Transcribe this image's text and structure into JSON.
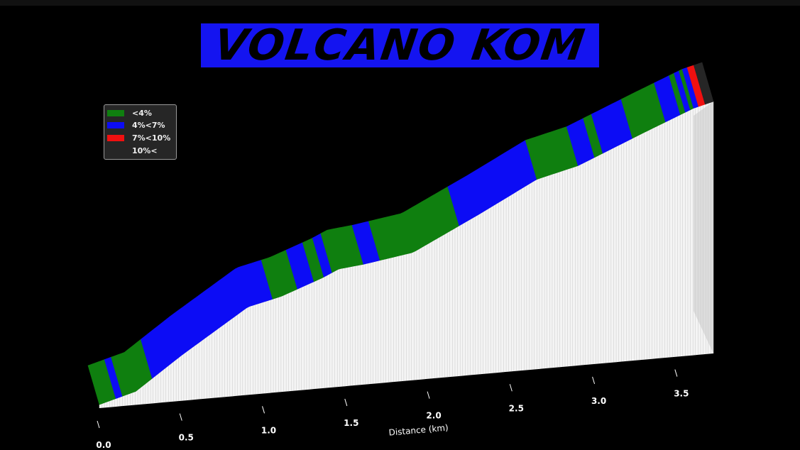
{
  "title": "VOLCANO KOM",
  "colors": {
    "title_background": "#1414f0",
    "background": "#000000",
    "low": "#0f7f0f",
    "medium": "#0c0cf5",
    "steep": "#f01010",
    "very_steep": "#262626"
  },
  "legend": [
    {
      "label": "<4%",
      "color": "#0f7f0f"
    },
    {
      "label": "4%<7%",
      "color": "#0c0cf5"
    },
    {
      "label": "7%<10%",
      "color": "#f01010"
    },
    {
      "label": "10%<",
      "color": "#262626"
    }
  ],
  "chart_data": {
    "type": "area",
    "style": "3d-ribbon",
    "xlabel": "Distance (km)",
    "ylabel": "",
    "xlim": [
      0.0,
      3.72
    ],
    "x_ticks": [
      "0.0",
      "0.5",
      "1.0",
      "1.5",
      "2.0",
      "2.5",
      "3.0",
      "3.5"
    ],
    "legend_position": "upper-left",
    "grid": false,
    "profile": {
      "x_km": [
        0.0,
        0.22,
        0.5,
        0.9,
        1.1,
        1.35,
        1.45,
        1.6,
        1.9,
        2.3,
        2.65,
        2.9,
        3.3,
        3.45,
        3.6,
        3.72
      ],
      "level": [
        0.0,
        0.04,
        0.17,
        0.34,
        0.37,
        0.43,
        0.46,
        0.47,
        0.5,
        0.63,
        0.75,
        0.79,
        0.9,
        0.94,
        0.98,
        1.0
      ]
    },
    "gradient_segments": [
      {
        "start_km": 0.0,
        "end_km": 0.1,
        "class": "<4%"
      },
      {
        "start_km": 0.1,
        "end_km": 0.14,
        "class": "4%<7%"
      },
      {
        "start_km": 0.14,
        "end_km": 0.32,
        "class": "<4%"
      },
      {
        "start_km": 0.32,
        "end_km": 1.05,
        "class": "4%<7%"
      },
      {
        "start_km": 1.05,
        "end_km": 1.2,
        "class": "<4%"
      },
      {
        "start_km": 1.2,
        "end_km": 1.3,
        "class": "4%<7%"
      },
      {
        "start_km": 1.3,
        "end_km": 1.36,
        "class": "<4%"
      },
      {
        "start_km": 1.36,
        "end_km": 1.41,
        "class": "4%<7%"
      },
      {
        "start_km": 1.41,
        "end_km": 1.6,
        "class": "<4%"
      },
      {
        "start_km": 1.6,
        "end_km": 1.7,
        "class": "4%<7%"
      },
      {
        "start_km": 1.7,
        "end_km": 2.18,
        "class": "<4%"
      },
      {
        "start_km": 2.18,
        "end_km": 2.65,
        "class": "4%<7%"
      },
      {
        "start_km": 2.65,
        "end_km": 2.9,
        "class": "<4%"
      },
      {
        "start_km": 2.9,
        "end_km": 3.0,
        "class": "4%<7%"
      },
      {
        "start_km": 3.0,
        "end_km": 3.05,
        "class": "<4%"
      },
      {
        "start_km": 3.05,
        "end_km": 3.23,
        "class": "4%<7%"
      },
      {
        "start_km": 3.23,
        "end_km": 3.43,
        "class": "<4%"
      },
      {
        "start_km": 3.43,
        "end_km": 3.52,
        "class": "4%<7%"
      },
      {
        "start_km": 3.52,
        "end_km": 3.55,
        "class": "<4%"
      },
      {
        "start_km": 3.55,
        "end_km": 3.58,
        "class": "4%<7%"
      },
      {
        "start_km": 3.58,
        "end_km": 3.6,
        "class": "<4%"
      },
      {
        "start_km": 3.6,
        "end_km": 3.63,
        "class": "4%<7%"
      },
      {
        "start_km": 3.63,
        "end_km": 3.67,
        "class": "7%<10%"
      },
      {
        "start_km": 3.67,
        "end_km": 3.72,
        "class": "10%<"
      }
    ]
  }
}
